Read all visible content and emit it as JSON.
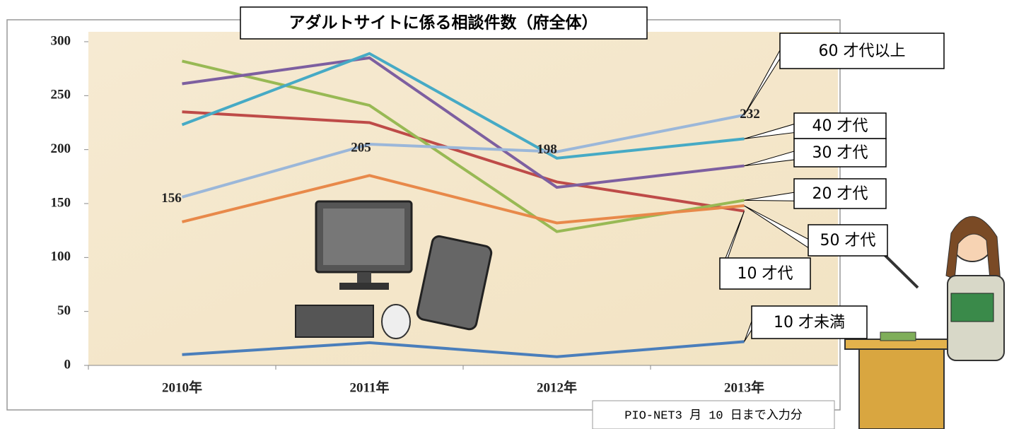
{
  "chart_data": {
    "type": "line",
    "title": "アダルトサイトに係る相談件数（府全体）",
    "annotation": "PIO-NET3 月 10 日まで入力分",
    "categories": [
      "2010年",
      "2011年",
      "2012年",
      "2013年"
    ],
    "ylim": [
      0,
      300
    ],
    "yticks": [
      0,
      50,
      100,
      150,
      200,
      250,
      300
    ],
    "series": [
      {
        "name": "10 才未満",
        "color": "#4a7ebb",
        "values": [
          10,
          21,
          8,
          22
        ]
      },
      {
        "name": "10 才代",
        "color": "#be4b48",
        "values": [
          235,
          225,
          170,
          143
        ]
      },
      {
        "name": "20 才代",
        "color": "#98b954",
        "values": [
          282,
          241,
          124,
          153
        ]
      },
      {
        "name": "30 才代",
        "color": "#7d5fa0",
        "values": [
          261,
          285,
          165,
          185
        ]
      },
      {
        "name": "40 才代",
        "color": "#46aac5",
        "values": [
          223,
          289,
          192,
          210
        ]
      },
      {
        "name": "50 才代",
        "color": "#e8894a",
        "values": [
          133,
          176,
          132,
          148
        ]
      },
      {
        "name": "60 才代以上",
        "color": "#9bb7d9",
        "values": [
          156,
          205,
          198,
          232
        ],
        "data_labels": true
      }
    ]
  }
}
